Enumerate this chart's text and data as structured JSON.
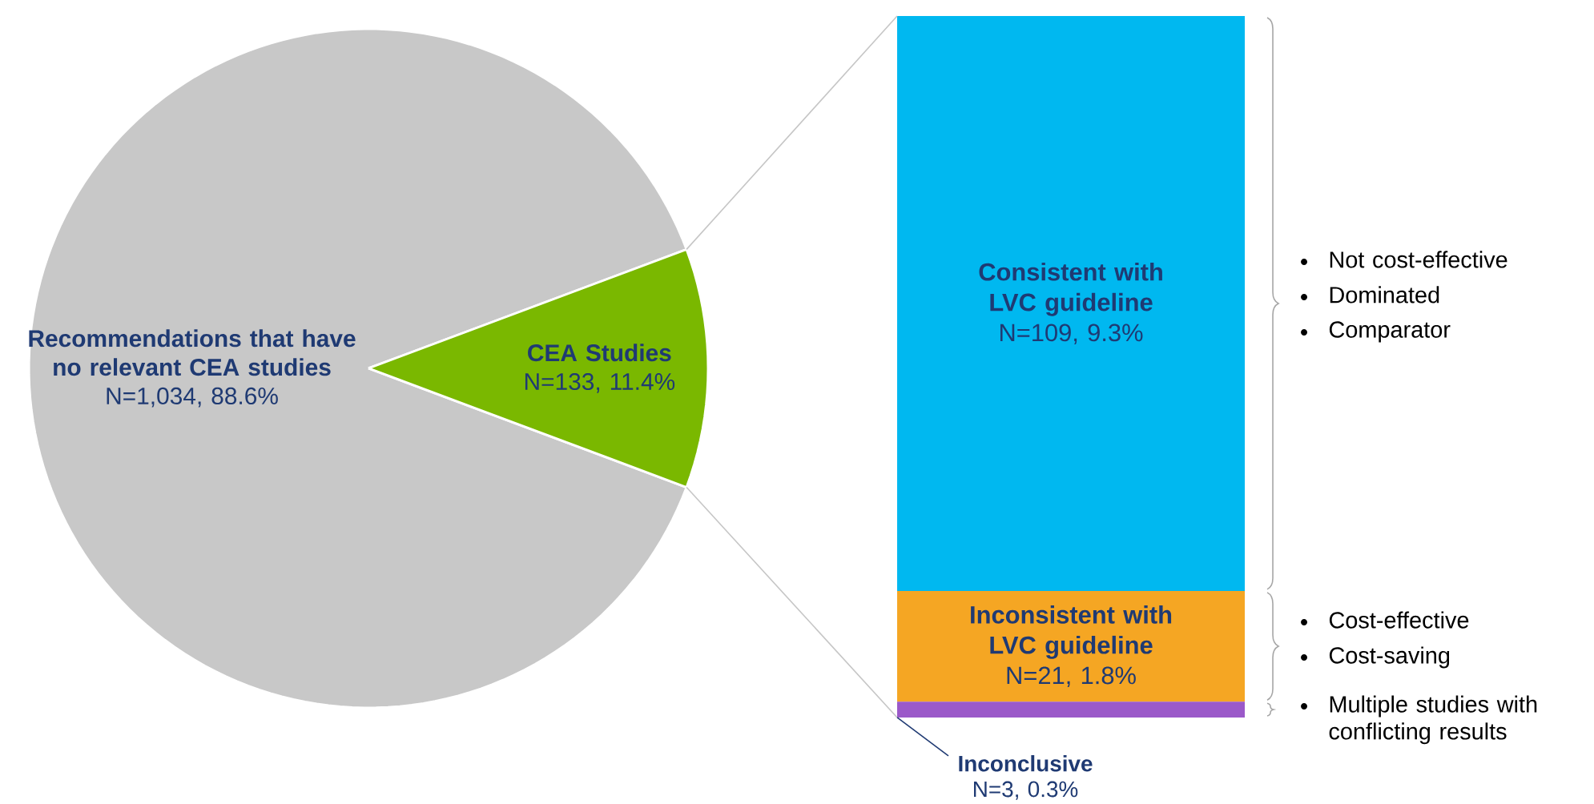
{
  "chart_data": [
    {
      "type": "pie",
      "categories": [
        "Recommendations that have no relevant CEA studies",
        "CEA Studies"
      ],
      "values": [
        1034,
        133
      ],
      "colors": [
        "#c8c8c8",
        "#7ab800"
      ],
      "value_labels": [
        "N=1,034, 88.6%",
        "N=133, 11.4%"
      ]
    },
    {
      "type": "bar",
      "stacked": true,
      "categories": [
        null
      ],
      "series": [
        {
          "name": "Inconclusive",
          "color": "#9b59c9",
          "values": [
            3
          ],
          "value_labels": [
            "N=3, 0.3%"
          ]
        },
        {
          "name": "Inconsistent with LVC guideline",
          "color": "#f5a623",
          "values": [
            21
          ],
          "value_labels": [
            "N=21, 1.8%"
          ]
        },
        {
          "name": "Consistent with LVC guideline",
          "color": "#00b8f0",
          "values": [
            109
          ],
          "value_labels": [
            "N=109, 9.3%"
          ]
        }
      ],
      "annotations": [
        "Not cost-effective",
        "Dominated",
        "Comparator",
        "Cost-effective",
        "Cost-saving",
        "Multiple studies with conflicting results"
      ]
    }
  ]
}
